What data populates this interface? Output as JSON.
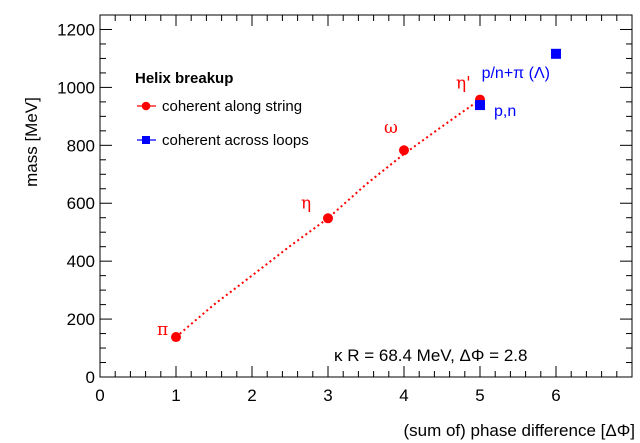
{
  "chart_data": {
    "type": "scatter",
    "xlabel": "(sum of) phase difference [ΔΦ]",
    "ylabel": "mass [MeV]",
    "xlim": [
      0,
      7
    ],
    "ylim": [
      0,
      1250
    ],
    "x_ticks": [
      "0",
      "1",
      "2",
      "3",
      "4",
      "5",
      "6"
    ],
    "y_ticks": [
      "0",
      "200",
      "400",
      "600",
      "800",
      "1000",
      "1200"
    ],
    "grid": false,
    "legend": {
      "title": "Helix breakup",
      "placement": "top-left",
      "entries": [
        "coherent along string",
        "coherent across loops"
      ]
    },
    "annotation": "κ R = 68.4 MeV, ΔΦ = 2.8",
    "series": [
      {
        "name": "coherent along string",
        "color": "#ff0000",
        "marker": "circle",
        "points": [
          {
            "x": 1,
            "y": 138,
            "label": "π"
          },
          {
            "x": 3,
            "y": 548,
            "label": "η"
          },
          {
            "x": 4,
            "y": 783,
            "label": "ω"
          },
          {
            "x": 5,
            "y": 958,
            "label": "η'"
          }
        ]
      },
      {
        "name": "coherent across loops",
        "color": "#0000ff",
        "marker": "square",
        "points": [
          {
            "x": 5,
            "y": 939,
            "label": "p,n"
          },
          {
            "x": 6,
            "y": 1116,
            "label": "p/n+π (Λ)"
          }
        ]
      }
    ],
    "fit_line": {
      "color": "#ff0000",
      "style": "dotted",
      "x": [
        1,
        1.5,
        2,
        2.5,
        3,
        3.5,
        4,
        4.5,
        5
      ],
      "y": [
        138,
        250,
        350,
        452,
        548,
        665,
        770,
        865,
        958
      ]
    }
  }
}
